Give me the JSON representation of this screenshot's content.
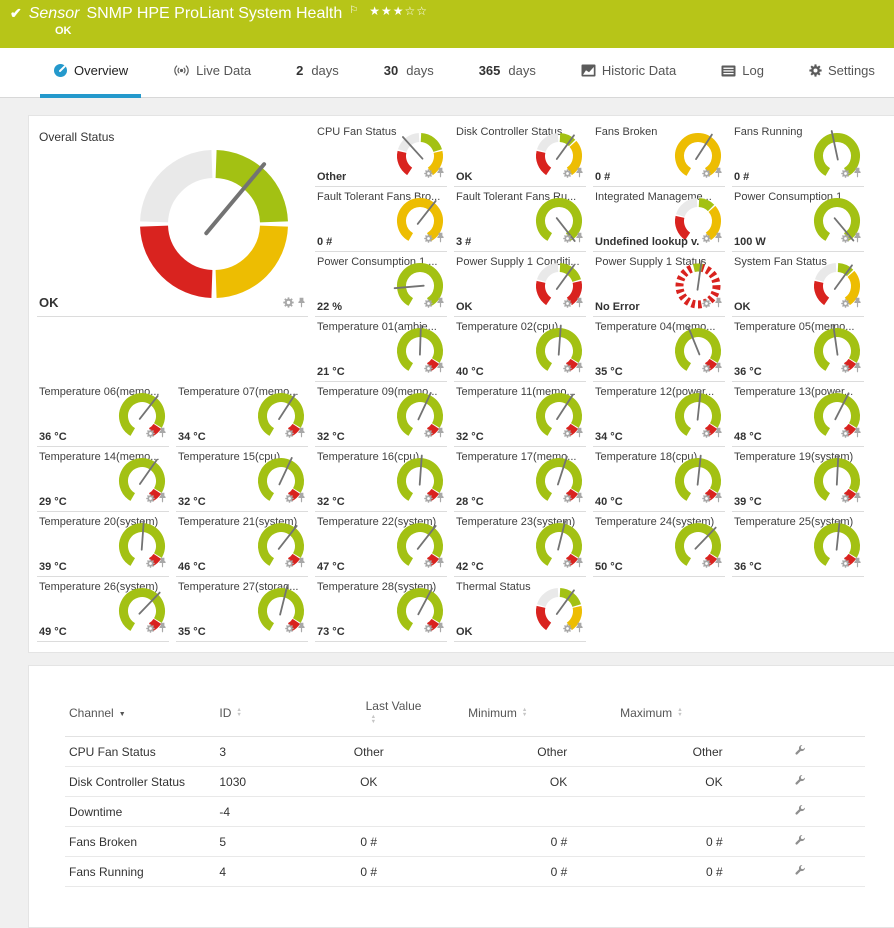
{
  "colors": {
    "header_green": "#b7c518",
    "accent_blue": "#2499cc",
    "gauge_green": "#a3c113",
    "gauge_yellow": "#edbd02",
    "gauge_red": "#d9231f",
    "gauge_gray": "#e9e9e9",
    "needle": "#737373"
  },
  "header": {
    "check_icon": "✔",
    "kind": "Sensor",
    "title": "SNMP HPE ProLiant System Health",
    "flag_icon": "⚐",
    "stars_filled": 3,
    "stars_total": 5,
    "status": "OK"
  },
  "tabs": [
    {
      "label": "Overview",
      "icon": "gauge",
      "active": true
    },
    {
      "label": "Live Data",
      "icon": "broadcast"
    },
    {
      "num": "2",
      "label": "days"
    },
    {
      "num": "30",
      "label": "days"
    },
    {
      "num": "365",
      "label": "days"
    },
    {
      "label": "Historic Data",
      "icon": "chart"
    },
    {
      "label": "Log",
      "icon": "log"
    },
    {
      "label": "Settings",
      "icon": "gear"
    }
  ],
  "overall_gauge": {
    "title": "Overall Status",
    "value": "OK",
    "style": "quad4",
    "needle": 40
  },
  "tile_icons": [
    "gear",
    "pin"
  ],
  "gauges": [
    {
      "title": "CPU Fan Status",
      "value": "Other",
      "style": "lookup-gyr",
      "needle": -42
    },
    {
      "title": "Disk Controller Status",
      "value": "OK",
      "style": "lookup-gyr-sg",
      "needle": 36
    },
    {
      "title": "Fans Broken",
      "value": "0 #",
      "style": "yellow-c",
      "needle": 33
    },
    {
      "title": "Fans Running",
      "value": "0 #",
      "style": "green-c",
      "needle": -12
    },
    {
      "title": "Fault Tolerant Fans Bro...",
      "value": "0 #",
      "style": "yellow-c",
      "needle": 38
    },
    {
      "title": "Fault Tolerant Fans Ru...",
      "value": "3 #",
      "style": "green-c",
      "needle": 142
    },
    {
      "title": "Integrated Manageme...",
      "value": "Undefined lookup v...",
      "style": "lookup-gyr-sg",
      "needle": null
    },
    {
      "title": "Power Consumption 1",
      "value": "100 W",
      "style": "green-c",
      "needle": 140
    },
    {
      "title": "Power Consumption 1 ...",
      "value": "22 %",
      "style": "green-c",
      "needle": -95
    },
    {
      "title": "Power Supply 1 Conditi...",
      "value": "OK",
      "style": "psu-cond",
      "needle": 36
    },
    {
      "title": "Power Supply 1 Status",
      "value": "No Error",
      "style": "dashed-red",
      "needle": 8
    },
    {
      "title": "System Fan Status",
      "value": "OK",
      "style": "lookup-gyr-sg",
      "needle": 36
    },
    {
      "title": "Temperature 01(ambie...",
      "value": "21 °C",
      "style": "temp-c",
      "needle": 2
    },
    {
      "title": "Temperature 02(cpu)",
      "value": "40 °C",
      "style": "temp-c",
      "needle": 4
    },
    {
      "title": "Temperature 04(memo...",
      "value": "35 °C",
      "style": "temp-c",
      "needle": -22
    },
    {
      "title": "Temperature 05(memo...",
      "value": "36 °C",
      "style": "temp-c",
      "needle": -8
    },
    {
      "title": "Temperature 06(memo...",
      "value": "36 °C",
      "style": "temp-c",
      "needle": 38
    },
    {
      "title": "Temperature 07(memo...",
      "value": "34 °C",
      "style": "temp-c",
      "needle": 33
    },
    {
      "title": "Temperature 09(memo...",
      "value": "32 °C",
      "style": "temp-c",
      "needle": 25
    },
    {
      "title": "Temperature 11(memo...",
      "value": "32 °C",
      "style": "temp-c",
      "needle": 33
    },
    {
      "title": "Temperature 12(power...",
      "value": "34 °C",
      "style": "temp-c",
      "needle": 6
    },
    {
      "title": "Temperature 13(power...",
      "value": "48 °C",
      "style": "temp-c",
      "needle": 27
    },
    {
      "title": "Temperature 14(memo...",
      "value": "29 °C",
      "style": "temp-c",
      "needle": 35
    },
    {
      "title": "Temperature 15(cpu)",
      "value": "32 °C",
      "style": "temp-c",
      "needle": 25
    },
    {
      "title": "Temperature 16(cpu)",
      "value": "32 °C",
      "style": "temp-c",
      "needle": 4
    },
    {
      "title": "Temperature 17(memo...",
      "value": "28 °C",
      "style": "temp-c",
      "needle": 18
    },
    {
      "title": "Temperature 18(cpu)",
      "value": "40 °C",
      "style": "temp-c",
      "needle": 6
    },
    {
      "title": "Temperature 19(system)",
      "value": "39 °C",
      "style": "temp-c",
      "needle": 3
    },
    {
      "title": "Temperature 20(system)",
      "value": "39 °C",
      "style": "temp-c",
      "needle": 4
    },
    {
      "title": "Temperature 21(system)",
      "value": "46 °C",
      "style": "temp-c",
      "needle": 38
    },
    {
      "title": "Temperature 22(system)",
      "value": "47 °C",
      "style": "temp-c",
      "needle": 38
    },
    {
      "title": "Temperature 23(system)",
      "value": "42 °C",
      "style": "temp-c",
      "needle": 14
    },
    {
      "title": "Temperature 24(system)",
      "value": "50 °C",
      "style": "temp-c",
      "needle": 44
    },
    {
      "title": "Temperature 25(system)",
      "value": "36 °C",
      "style": "temp-c",
      "needle": 6
    },
    {
      "title": "Temperature 26(system)",
      "value": "49 °C",
      "style": "temp-c",
      "needle": 44
    },
    {
      "title": "Temperature 27(storag...",
      "value": "35 °C",
      "style": "temp-c",
      "needle": 14
    },
    {
      "title": "Temperature 28(system)",
      "value": "73 °C",
      "style": "temp-c",
      "needle": 28
    },
    {
      "title": "Thermal Status",
      "value": "OK",
      "style": "lookup-gyr",
      "needle": 36
    }
  ],
  "channel_table": {
    "columns": [
      {
        "label": "Channel",
        "sort": "desc"
      },
      {
        "label": "ID",
        "sort": "both"
      },
      {
        "label": "Last Value",
        "sort": "both"
      },
      {
        "label": "Minimum",
        "sort": "both"
      },
      {
        "label": "Maximum",
        "sort": "both"
      }
    ],
    "rows": [
      {
        "channel": "CPU Fan Status",
        "id": "3",
        "last": "Other",
        "min": "Other",
        "max": "Other"
      },
      {
        "channel": "Disk Controller Status",
        "id": "1030",
        "last": "OK",
        "min": "OK",
        "max": "OK"
      },
      {
        "channel": "Downtime",
        "id": "-4",
        "last": "",
        "min": "",
        "max": ""
      },
      {
        "channel": "Fans Broken",
        "id": "5",
        "last": "0 #",
        "min": "0 #",
        "max": "0 #"
      },
      {
        "channel": "Fans Running",
        "id": "4",
        "last": "0 #",
        "min": "0 #",
        "max": "0 #"
      }
    ]
  }
}
